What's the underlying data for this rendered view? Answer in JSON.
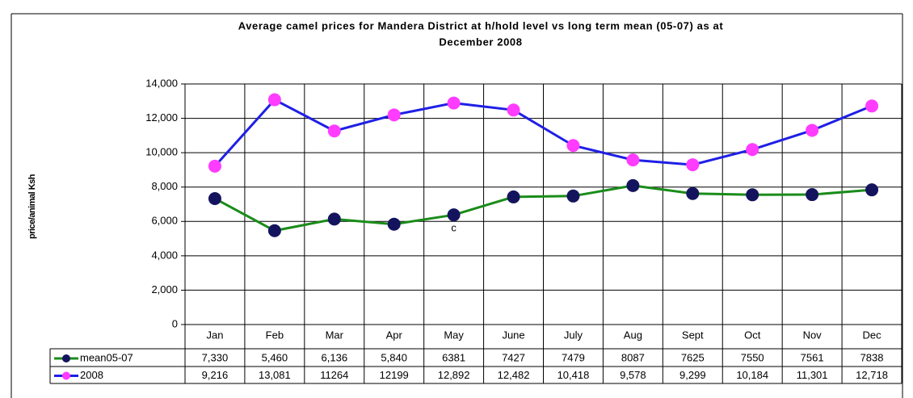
{
  "chart_data": {
    "type": "line",
    "title": [
      "Average camel prices for Mandera District at h/hold level vs long term mean (05-07)  as at",
      "December 2008"
    ],
    "y_label": "price/animal Ksh",
    "annotation": "c",
    "categories": [
      "Jan",
      "Feb",
      "Mar",
      "Apr",
      "May",
      "June",
      "July",
      "Aug",
      "Sept",
      "Oct",
      "Nov",
      "Dec"
    ],
    "series": [
      {
        "name": "mean05-07",
        "color": "#1a8c1a",
        "marker_color": "#14145e",
        "values": [
          7330,
          5460,
          6136,
          5840,
          6381,
          7427,
          7479,
          8087,
          7625,
          7550,
          7561,
          7838
        ],
        "value_labels": [
          "7,330",
          "5,460",
          "6,136",
          "5,840",
          "6381",
          "7427",
          "7479",
          "8087",
          "7625",
          "7550",
          "7561",
          "7838"
        ]
      },
      {
        "name": "2008",
        "color": "#1f1fe6",
        "marker_color": "#ff3cff",
        "values": [
          9216,
          13081,
          11264,
          12199,
          12892,
          12482,
          10418,
          9578,
          9299,
          10184,
          11301,
          12718
        ],
        "value_labels": [
          "9,216",
          "13,081",
          "11264",
          "12199",
          "12,892",
          "12,482",
          "10,418",
          "9,578",
          "9,299",
          "10,184",
          "11,301",
          "12,718"
        ]
      }
    ],
    "ylim": [
      0,
      14000
    ],
    "yticks": [
      0,
      {
        "value": 2000,
        "label": "2,000"
      },
      {
        "value": 4000,
        "label": "4,000"
      },
      {
        "value": 6000,
        "label": "6,000"
      },
      {
        "value": 8000,
        "label": "8,000"
      },
      {
        "value": 10000,
        "label": "10,000"
      },
      {
        "value": 12000,
        "label": "12,000"
      },
      {
        "value": 14000,
        "label": "14,000"
      }
    ],
    "grid": true
  }
}
